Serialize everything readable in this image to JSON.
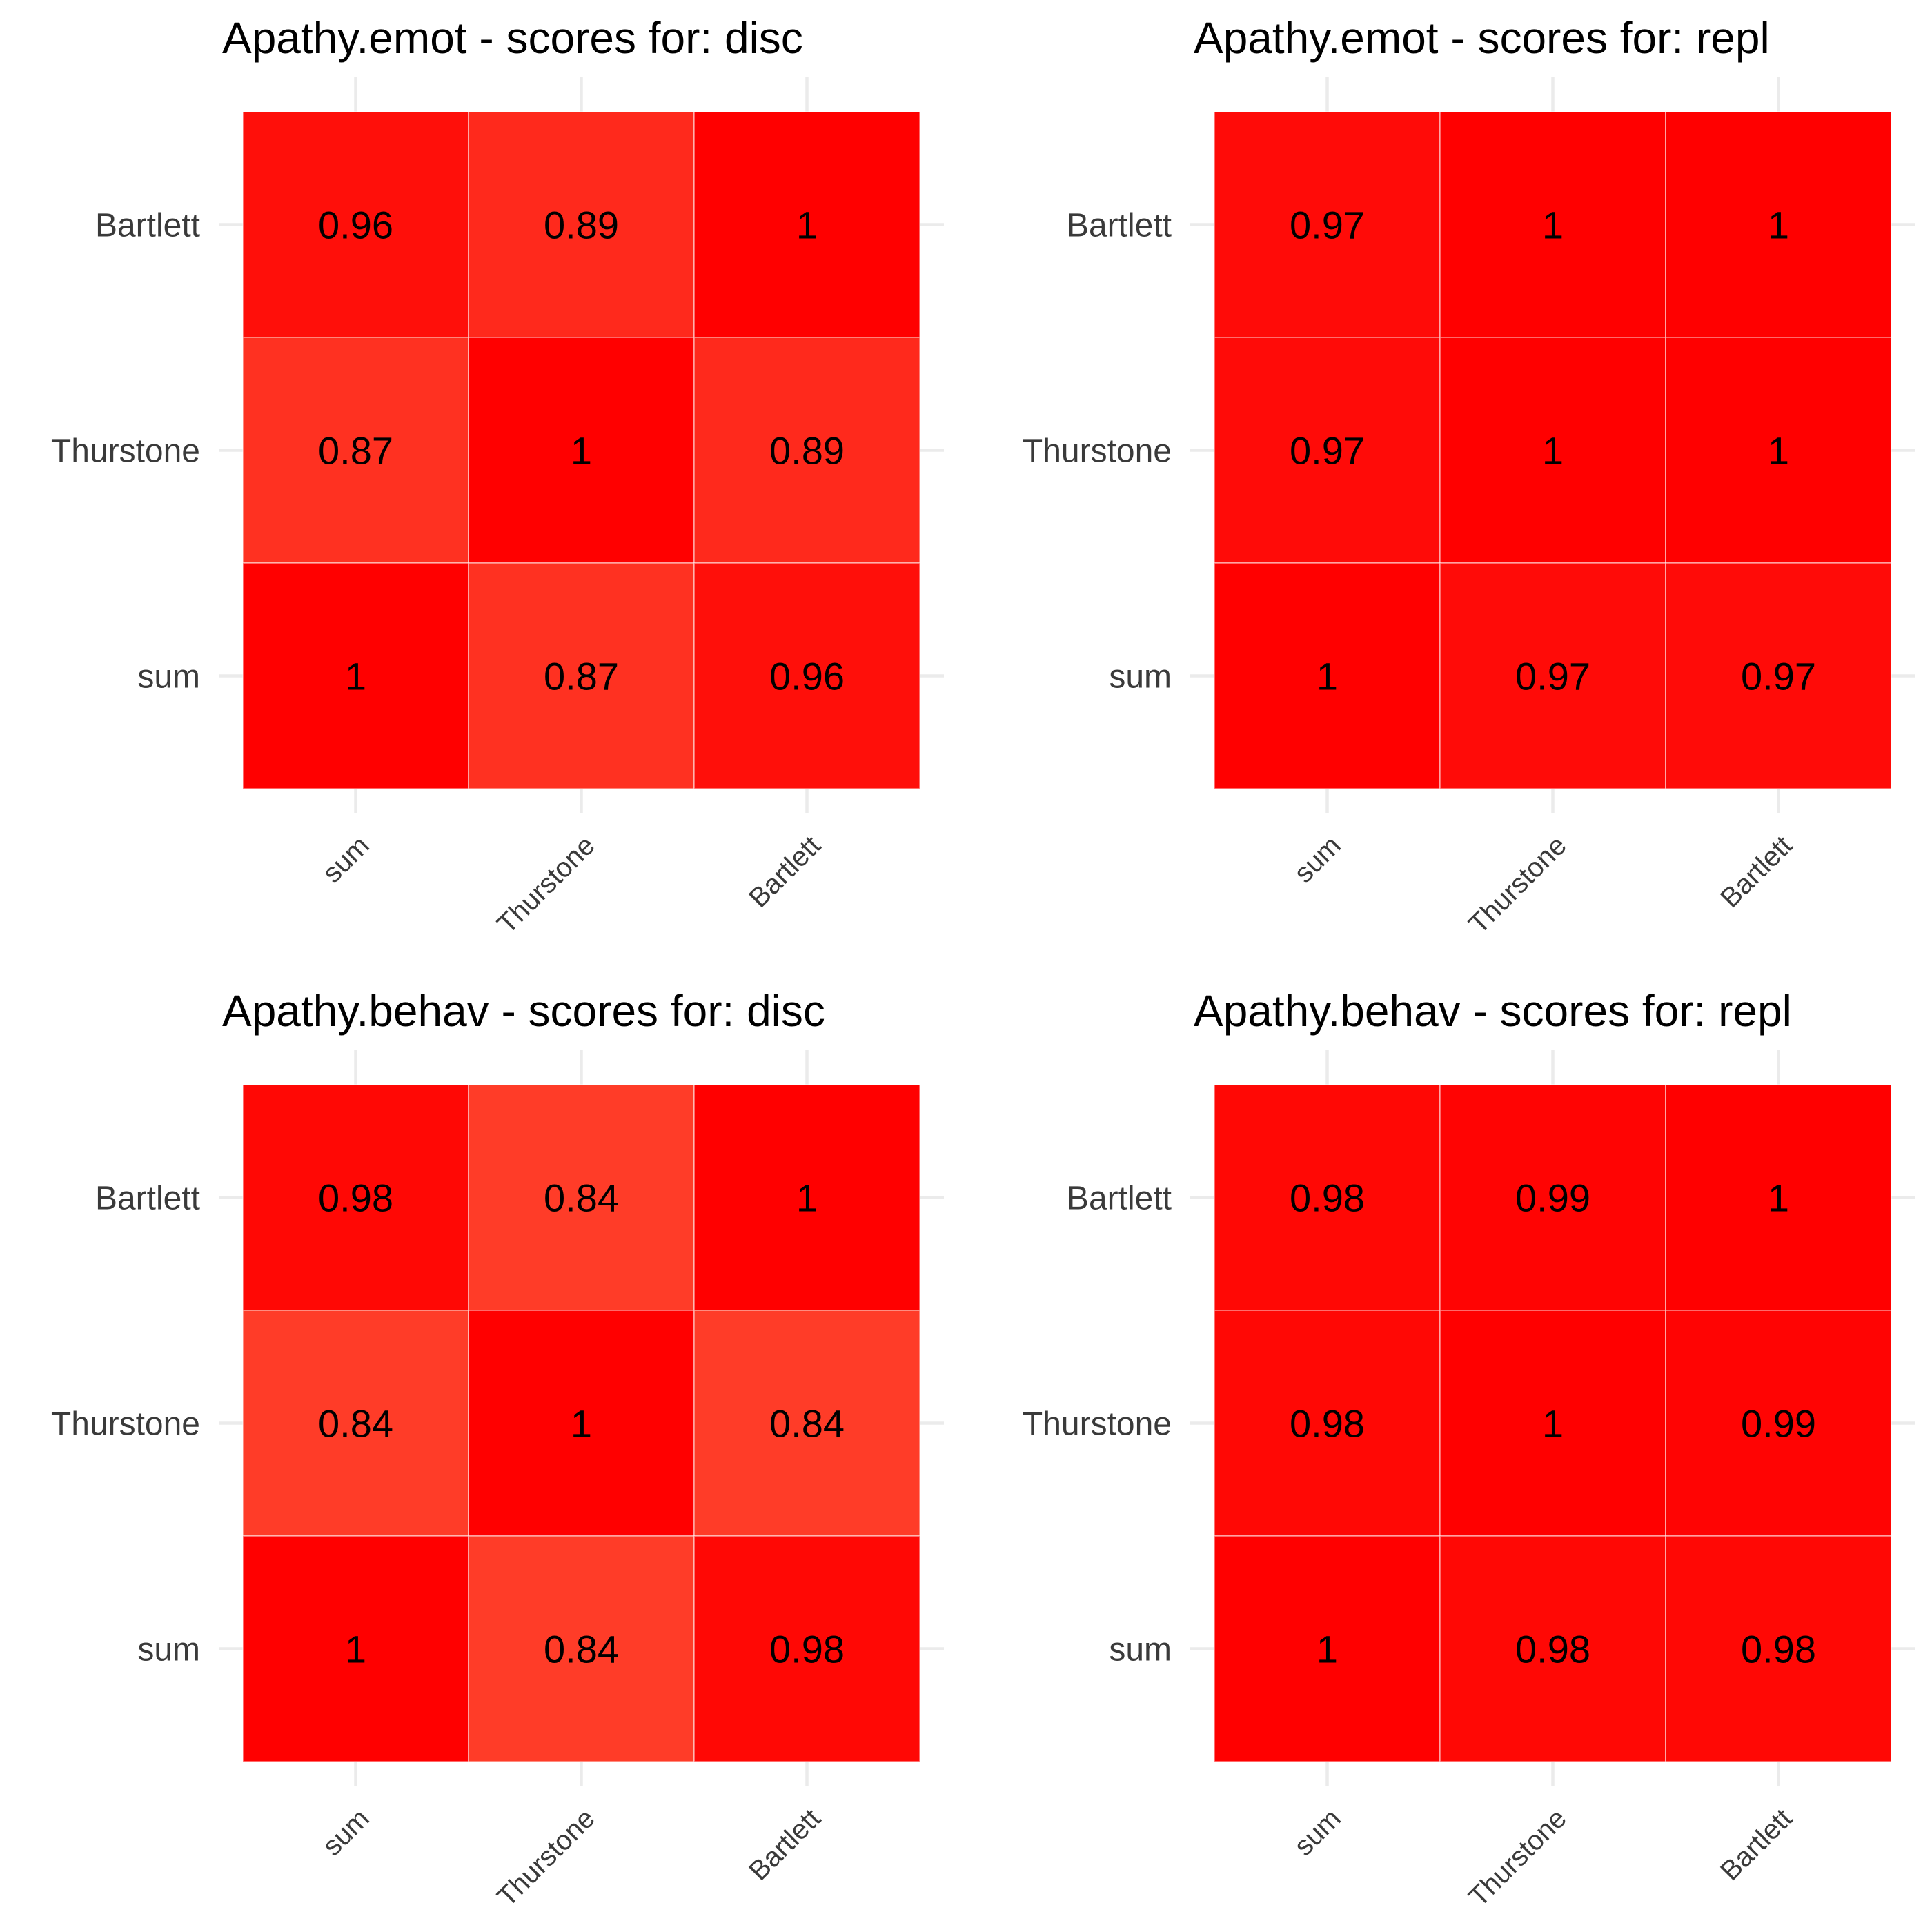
{
  "chart_data": [
    {
      "type": "heatmap",
      "title": "Apathy.emot - scores for: disc",
      "x_categories": [
        "sum",
        "Thurstone",
        "Bartlett"
      ],
      "y_categories": [
        "sum",
        "Thurstone",
        "Bartlett"
      ],
      "cells": [
        {
          "x": "sum",
          "y": "Bartlett",
          "value": 0.96,
          "label": "0.96"
        },
        {
          "x": "Thurstone",
          "y": "Bartlett",
          "value": 0.89,
          "label": "0.89"
        },
        {
          "x": "Bartlett",
          "y": "Bartlett",
          "value": 1,
          "label": "1"
        },
        {
          "x": "sum",
          "y": "Thurstone",
          "value": 0.87,
          "label": "0.87"
        },
        {
          "x": "Thurstone",
          "y": "Thurstone",
          "value": 1,
          "label": "1"
        },
        {
          "x": "Bartlett",
          "y": "Thurstone",
          "value": 0.89,
          "label": "0.89"
        },
        {
          "x": "sum",
          "y": "sum",
          "value": 1,
          "label": "1"
        },
        {
          "x": "Thurstone",
          "y": "sum",
          "value": 0.87,
          "label": "0.87"
        },
        {
          "x": "Bartlett",
          "y": "sum",
          "value": 0.96,
          "label": "0.96"
        }
      ]
    },
    {
      "type": "heatmap",
      "title": "Apathy.emot - scores for: repl",
      "x_categories": [
        "sum",
        "Thurstone",
        "Bartlett"
      ],
      "y_categories": [
        "sum",
        "Thurstone",
        "Bartlett"
      ],
      "cells": [
        {
          "x": "sum",
          "y": "Bartlett",
          "value": 0.97,
          "label": "0.97"
        },
        {
          "x": "Thurstone",
          "y": "Bartlett",
          "value": 1,
          "label": "1"
        },
        {
          "x": "Bartlett",
          "y": "Bartlett",
          "value": 1,
          "label": "1"
        },
        {
          "x": "sum",
          "y": "Thurstone",
          "value": 0.97,
          "label": "0.97"
        },
        {
          "x": "Thurstone",
          "y": "Thurstone",
          "value": 1,
          "label": "1"
        },
        {
          "x": "Bartlett",
          "y": "Thurstone",
          "value": 1,
          "label": "1"
        },
        {
          "x": "sum",
          "y": "sum",
          "value": 1,
          "label": "1"
        },
        {
          "x": "Thurstone",
          "y": "sum",
          "value": 0.97,
          "label": "0.97"
        },
        {
          "x": "Bartlett",
          "y": "sum",
          "value": 0.97,
          "label": "0.97"
        }
      ]
    },
    {
      "type": "heatmap",
      "title": "Apathy.behav - scores for: disc",
      "x_categories": [
        "sum",
        "Thurstone",
        "Bartlett"
      ],
      "y_categories": [
        "sum",
        "Thurstone",
        "Bartlett"
      ],
      "cells": [
        {
          "x": "sum",
          "y": "Bartlett",
          "value": 0.98,
          "label": "0.98"
        },
        {
          "x": "Thurstone",
          "y": "Bartlett",
          "value": 0.84,
          "label": "0.84"
        },
        {
          "x": "Bartlett",
          "y": "Bartlett",
          "value": 1,
          "label": "1"
        },
        {
          "x": "sum",
          "y": "Thurstone",
          "value": 0.84,
          "label": "0.84"
        },
        {
          "x": "Thurstone",
          "y": "Thurstone",
          "value": 1,
          "label": "1"
        },
        {
          "x": "Bartlett",
          "y": "Thurstone",
          "value": 0.84,
          "label": "0.84"
        },
        {
          "x": "sum",
          "y": "sum",
          "value": 1,
          "label": "1"
        },
        {
          "x": "Thurstone",
          "y": "sum",
          "value": 0.84,
          "label": "0.84"
        },
        {
          "x": "Bartlett",
          "y": "sum",
          "value": 0.98,
          "label": "0.98"
        }
      ]
    },
    {
      "type": "heatmap",
      "title": "Apathy.behav - scores for: repl",
      "x_categories": [
        "sum",
        "Thurstone",
        "Bartlett"
      ],
      "y_categories": [
        "sum",
        "Thurstone",
        "Bartlett"
      ],
      "cells": [
        {
          "x": "sum",
          "y": "Bartlett",
          "value": 0.98,
          "label": "0.98"
        },
        {
          "x": "Thurstone",
          "y": "Bartlett",
          "value": 0.99,
          "label": "0.99"
        },
        {
          "x": "Bartlett",
          "y": "Bartlett",
          "value": 1,
          "label": "1"
        },
        {
          "x": "sum",
          "y": "Thurstone",
          "value": 0.98,
          "label": "0.98"
        },
        {
          "x": "Thurstone",
          "y": "Thurstone",
          "value": 1,
          "label": "1"
        },
        {
          "x": "Bartlett",
          "y": "Thurstone",
          "value": 0.99,
          "label": "0.99"
        },
        {
          "x": "sum",
          "y": "sum",
          "value": 1,
          "label": "1"
        },
        {
          "x": "Thurstone",
          "y": "sum",
          "value": 0.98,
          "label": "0.98"
        },
        {
          "x": "Bartlett",
          "y": "sum",
          "value": 0.98,
          "label": "0.98"
        }
      ]
    }
  ]
}
